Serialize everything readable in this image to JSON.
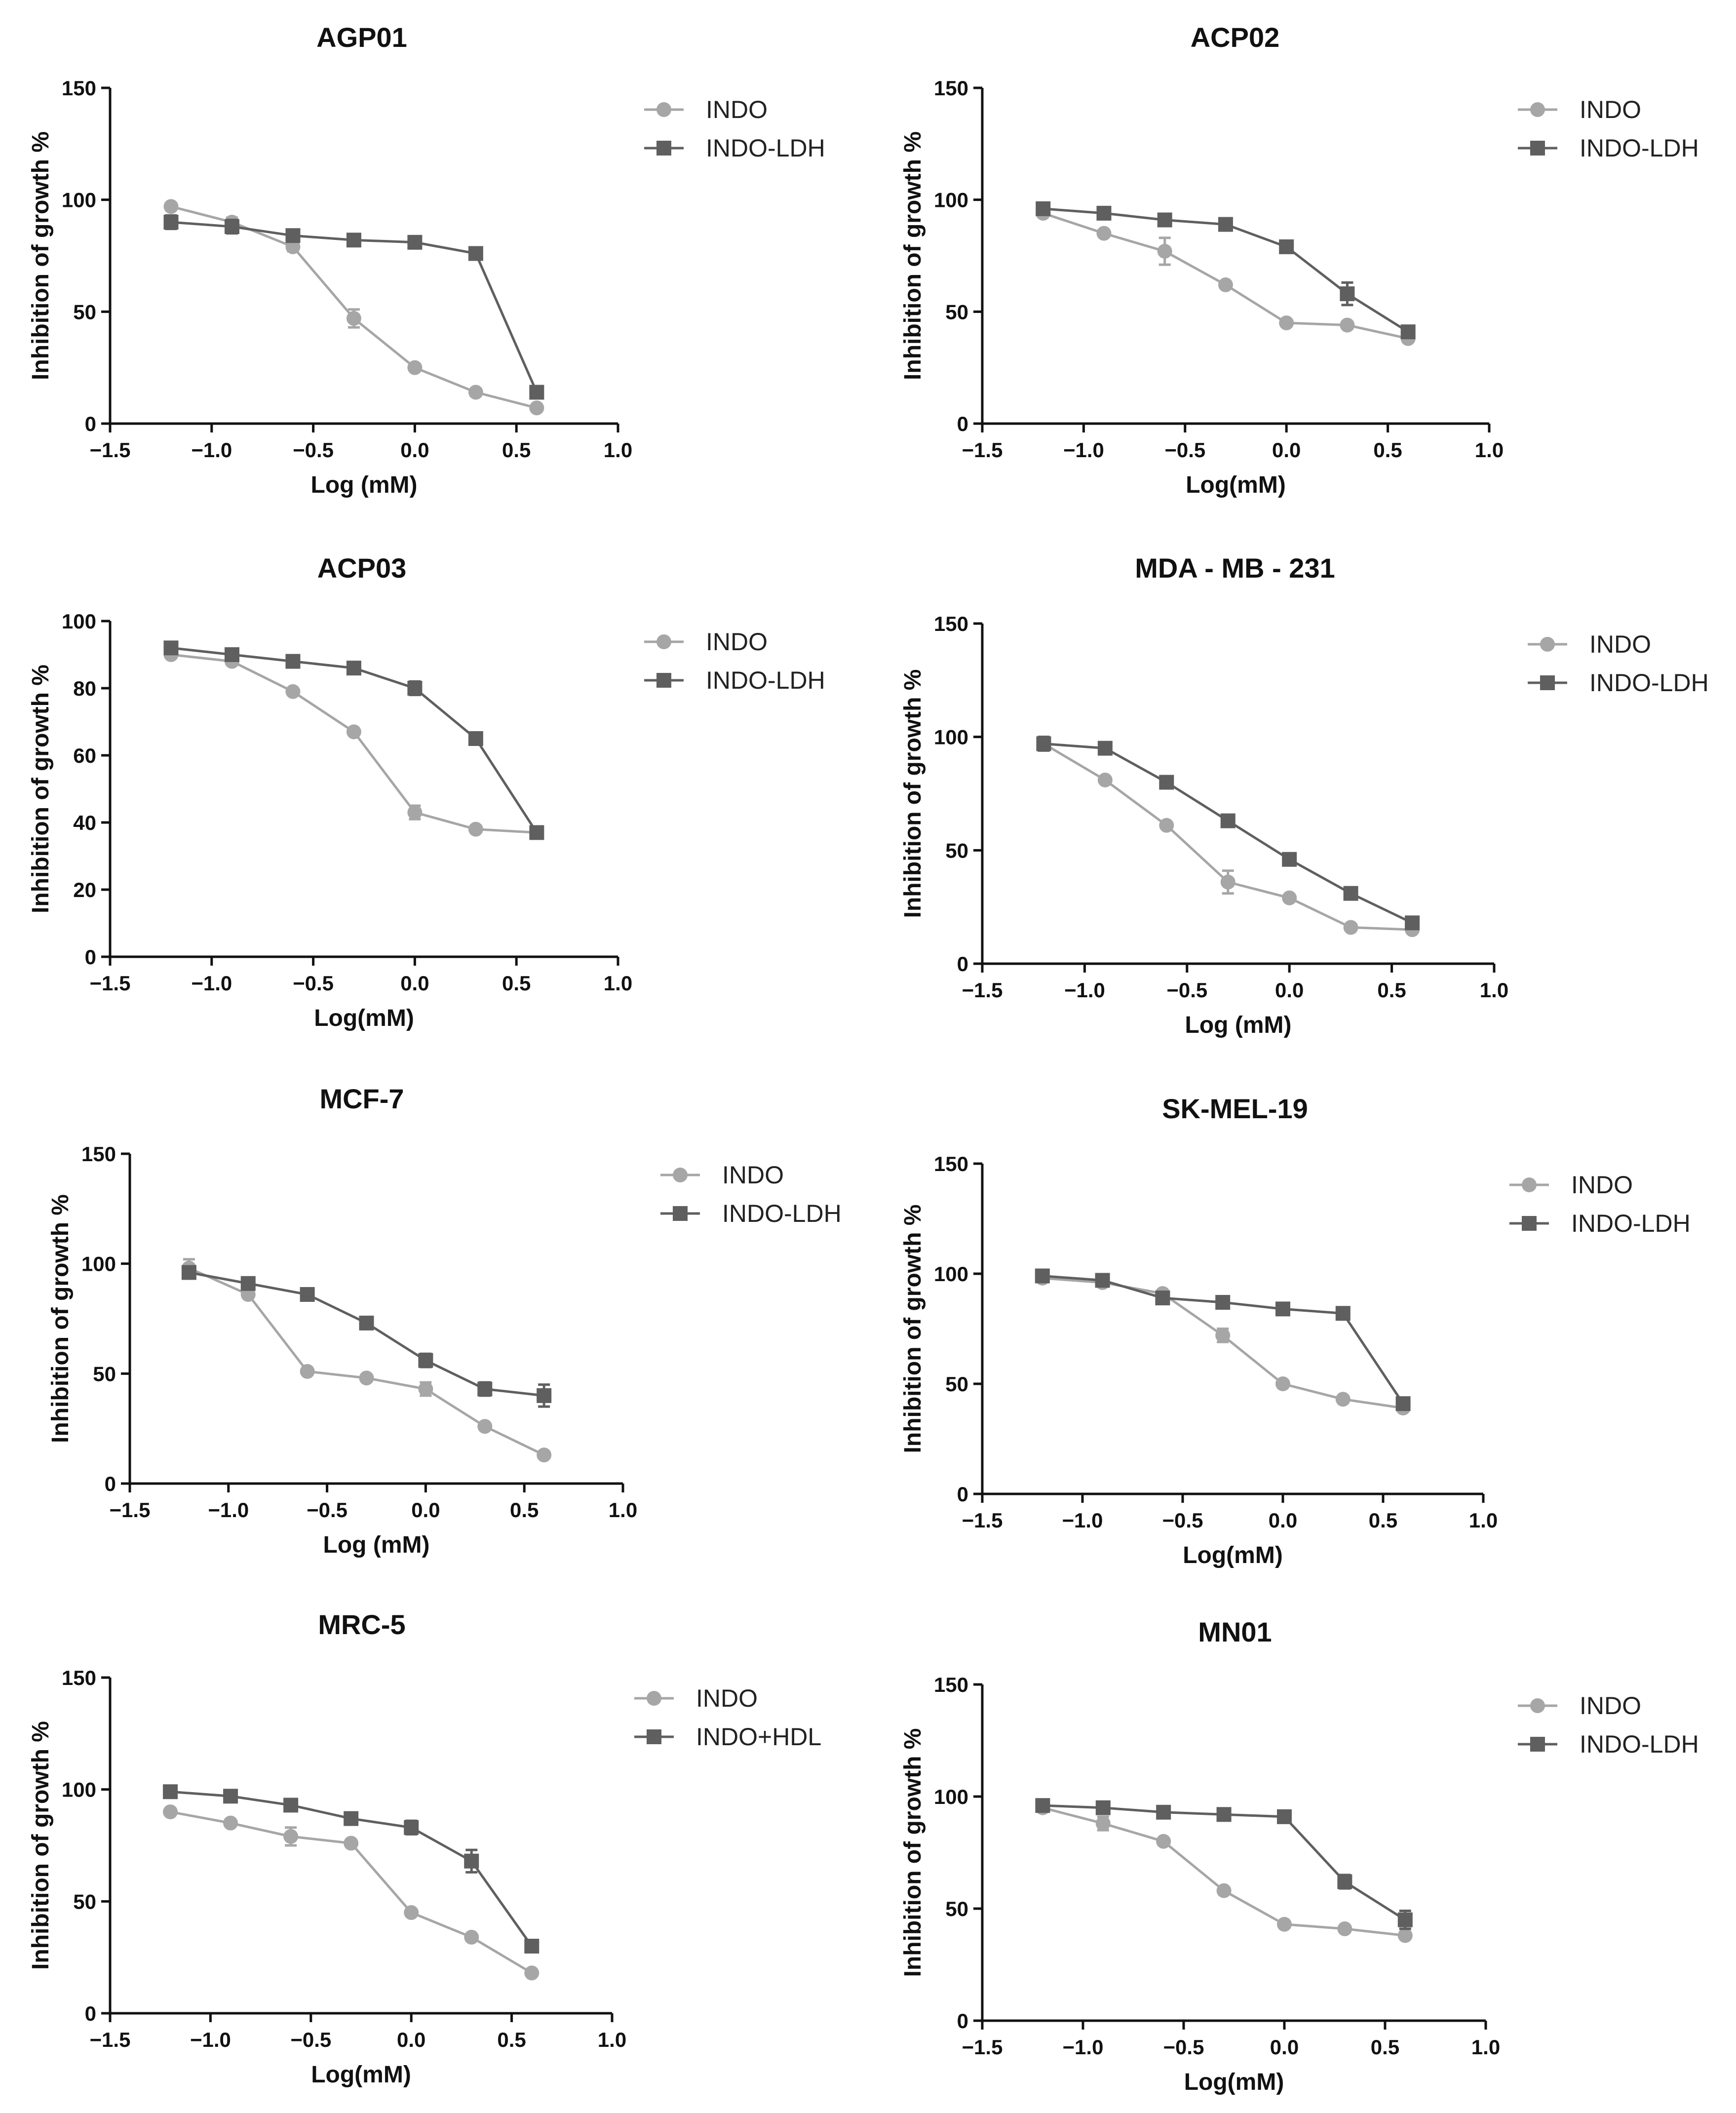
{
  "figure": {
    "background": "#ffffff"
  },
  "colors": {
    "indo": "#a6a6a6",
    "ldh": "#5f5f5f",
    "axis": "#111111"
  },
  "chart_data": [
    {
      "type": "line",
      "title": "AGP01",
      "xlabel": "Log (mM)",
      "ylabel": "Inhibition of growth %",
      "xlim": [
        -1.5,
        1.0
      ],
      "ylim": [
        0,
        150
      ],
      "xticks": [
        -1.5,
        -1.0,
        -0.5,
        0.0,
        0.5,
        1.0
      ],
      "xtick_labels": [
        "−1.5",
        "−1.0",
        "−0.5",
        "0.0",
        "0.5",
        "1.0"
      ],
      "yticks": [
        0,
        50,
        100,
        150
      ],
      "ytick_labels": [
        "0",
        "50",
        "100",
        "150"
      ],
      "legend_position": "right",
      "x": [
        -1.2,
        -0.9,
        -0.6,
        -0.3,
        0.0,
        0.3,
        0.6
      ],
      "series": [
        {
          "name": "INDO",
          "marker": "circle",
          "values": [
            97,
            90,
            79,
            47,
            25,
            14,
            7
          ],
          "errors": [
            1,
            2,
            2,
            4,
            1,
            1,
            1
          ]
        },
        {
          "name": "INDO-LDH",
          "marker": "square",
          "values": [
            90,
            88,
            84,
            82,
            81,
            76,
            14
          ],
          "errors": [
            3,
            3,
            1,
            1,
            1,
            2,
            2
          ]
        }
      ]
    },
    {
      "type": "line",
      "title": "ACP02",
      "xlabel": "Log(mM)",
      "ylabel": "Inhibition of growth %",
      "xlim": [
        -1.5,
        1.0
      ],
      "ylim": [
        0,
        150
      ],
      "xticks": [
        -1.5,
        -1.0,
        -0.5,
        0.0,
        0.5,
        1.0
      ],
      "xtick_labels": [
        "−1.5",
        "−1.0",
        "−0.5",
        "0.0",
        "0.5",
        "1.0"
      ],
      "yticks": [
        0,
        50,
        100,
        150
      ],
      "ytick_labels": [
        "0",
        "50",
        "100",
        "150"
      ],
      "legend_position": "right",
      "x": [
        -1.2,
        -0.9,
        -0.6,
        -0.3,
        0.0,
        0.3,
        0.6
      ],
      "series": [
        {
          "name": "INDO",
          "marker": "circle",
          "values": [
            94,
            85,
            77,
            62,
            45,
            44,
            38
          ],
          "errors": [
            1,
            1,
            6,
            1,
            1,
            1,
            1
          ]
        },
        {
          "name": "INDO-LDH",
          "marker": "square",
          "values": [
            96,
            94,
            91,
            89,
            79,
            58,
            41
          ],
          "errors": [
            1,
            1,
            1,
            1,
            1,
            5,
            1
          ]
        }
      ]
    },
    {
      "type": "line",
      "title": "ACP03",
      "xlabel": "Log(mM)",
      "ylabel": "Inhibition of growth %",
      "xlim": [
        -1.5,
        1.0
      ],
      "ylim": [
        0,
        100
      ],
      "xticks": [
        -1.5,
        -1.0,
        -0.5,
        0.0,
        0.5,
        1.0
      ],
      "xtick_labels": [
        "−1.5",
        "−1.0",
        "−0.5",
        "0.0",
        "0.5",
        "1.0"
      ],
      "yticks": [
        0,
        20,
        40,
        60,
        80,
        100
      ],
      "ytick_labels": [
        "0",
        "20",
        "40",
        "60",
        "80",
        "100"
      ],
      "legend_position": "right",
      "x": [
        -1.2,
        -0.9,
        -0.6,
        -0.3,
        0.0,
        0.3,
        0.6
      ],
      "series": [
        {
          "name": "INDO",
          "marker": "circle",
          "values": [
            90,
            88,
            79,
            67,
            43,
            38,
            37
          ],
          "errors": [
            1,
            1,
            1,
            1,
            2,
            1,
            1
          ]
        },
        {
          "name": "INDO-LDH",
          "marker": "square",
          "values": [
            92,
            90,
            88,
            86,
            80,
            65,
            37
          ],
          "errors": [
            1,
            1,
            1,
            1,
            2,
            1,
            1
          ]
        }
      ]
    },
    {
      "type": "line",
      "title": "MDA - MB - 231",
      "xlabel": "Log (mM)",
      "ylabel": "Inhibition of growth %",
      "xlim": [
        -1.5,
        1.0
      ],
      "ylim": [
        0,
        150
      ],
      "xticks": [
        -1.5,
        -1.0,
        -0.5,
        0.0,
        0.5,
        1.0
      ],
      "xtick_labels": [
        "−1.5",
        "−1.0",
        "−0.5",
        "0.0",
        "0.5",
        "1.0"
      ],
      "yticks": [
        0,
        50,
        100,
        150
      ],
      "ytick_labels": [
        "0",
        "50",
        "100",
        "150"
      ],
      "legend_position": "right",
      "x": [
        -1.2,
        -0.9,
        -0.6,
        -0.3,
        0.0,
        0.3,
        0.6
      ],
      "series": [
        {
          "name": "INDO",
          "marker": "circle",
          "values": [
            97,
            81,
            61,
            36,
            29,
            16,
            15
          ],
          "errors": [
            3,
            1,
            1,
            5,
            1,
            1,
            1
          ]
        },
        {
          "name": "INDO-LDH",
          "marker": "square",
          "values": [
            97,
            95,
            80,
            63,
            46,
            31,
            18
          ],
          "errors": [
            3,
            1,
            1,
            1,
            1,
            1,
            1
          ]
        }
      ]
    },
    {
      "type": "line",
      "title": "MCF-7",
      "xlabel": "Log (mM)",
      "ylabel": "Inhibition of growth %",
      "xlim": [
        -1.5,
        1.0
      ],
      "ylim": [
        0,
        150
      ],
      "xticks": [
        -1.5,
        -1.0,
        -0.5,
        0.0,
        0.5,
        1.0
      ],
      "xtick_labels": [
        "−1.5",
        "−1.0",
        "−0.5",
        "0.0",
        "0.5",
        "1.0"
      ],
      "yticks": [
        0,
        50,
        100,
        150
      ],
      "ytick_labels": [
        "0",
        "50",
        "100",
        "150"
      ],
      "legend_position": "right",
      "x": [
        -1.2,
        -0.9,
        -0.6,
        -0.3,
        0.0,
        0.3,
        0.6
      ],
      "series": [
        {
          "name": "INDO",
          "marker": "circle",
          "values": [
            98,
            86,
            51,
            48,
            43,
            26,
            13
          ],
          "errors": [
            4,
            1,
            1,
            1,
            3,
            1,
            1
          ]
        },
        {
          "name": "INDO-LDH",
          "marker": "square",
          "values": [
            96,
            91,
            86,
            73,
            56,
            43,
            40
          ],
          "errors": [
            2,
            1,
            1,
            1,
            3,
            3,
            5
          ]
        }
      ]
    },
    {
      "type": "line",
      "title": "SK-MEL-19",
      "xlabel": "Log(mM)",
      "ylabel": "Inhibition of growth %",
      "xlim": [
        -1.5,
        1.0
      ],
      "ylim": [
        0,
        150
      ],
      "xticks": [
        -1.5,
        -1.0,
        -0.5,
        0.0,
        0.5,
        1.0
      ],
      "xtick_labels": [
        "−1.5",
        "−1.0",
        "−0.5",
        "0.0",
        "0.5",
        "1.0"
      ],
      "yticks": [
        0,
        50,
        100,
        150
      ],
      "ytick_labels": [
        "0",
        "50",
        "100",
        "150"
      ],
      "legend_position": "right",
      "x": [
        -1.2,
        -0.9,
        -0.6,
        -0.3,
        0.0,
        0.3,
        0.6
      ],
      "series": [
        {
          "name": "INDO",
          "marker": "circle",
          "values": [
            98,
            96,
            91,
            72,
            50,
            43,
            39
          ],
          "errors": [
            1,
            1,
            1,
            3,
            1,
            1,
            1
          ]
        },
        {
          "name": "INDO-LDH",
          "marker": "square",
          "values": [
            99,
            97,
            89,
            87,
            84,
            82,
            41
          ],
          "errors": [
            1,
            1,
            1,
            1,
            1,
            1,
            2
          ]
        }
      ]
    },
    {
      "type": "line",
      "title": "MRC-5",
      "xlabel": "Log(mM)",
      "ylabel": "Inhibition of growth %",
      "xlim": [
        -1.5,
        1.0
      ],
      "ylim": [
        0,
        150
      ],
      "xticks": [
        -1.5,
        -1.0,
        -0.5,
        0.0,
        0.5,
        1.0
      ],
      "xtick_labels": [
        "−1.5",
        "−1.0",
        "−0.5",
        "0.0",
        "0.5",
        "1.0"
      ],
      "yticks": [
        0,
        50,
        100,
        150
      ],
      "ytick_labels": [
        "0",
        "50",
        "100",
        "150"
      ],
      "legend_position": "right",
      "x": [
        -1.2,
        -0.9,
        -0.6,
        -0.3,
        0.0,
        0.3,
        0.6
      ],
      "series": [
        {
          "name": "INDO",
          "marker": "circle",
          "values": [
            90,
            85,
            79,
            76,
            45,
            34,
            18
          ],
          "errors": [
            1,
            1,
            4,
            1,
            1,
            1,
            1
          ]
        },
        {
          "name": "INDO+HDL",
          "marker": "square",
          "values": [
            99,
            97,
            93,
            87,
            83,
            68,
            30
          ],
          "errors": [
            1,
            1,
            1,
            1,
            3,
            5,
            1
          ]
        }
      ]
    },
    {
      "type": "line",
      "title": "MN01",
      "xlabel": "Log(mM)",
      "ylabel": "Inhibition of growth %",
      "xlim": [
        -1.5,
        1.0
      ],
      "ylim": [
        0,
        150
      ],
      "xticks": [
        -1.5,
        -1.0,
        -0.5,
        0.0,
        0.5,
        1.0
      ],
      "xtick_labels": [
        "−1.5",
        "−1.0",
        "−0.5",
        "0.0",
        "0.5",
        "1.0"
      ],
      "yticks": [
        0,
        50,
        100,
        150
      ],
      "ytick_labels": [
        "0",
        "50",
        "100",
        "150"
      ],
      "legend_position": "right",
      "x": [
        -1.2,
        -0.9,
        -0.6,
        -0.3,
        0.0,
        0.3,
        0.6
      ],
      "series": [
        {
          "name": "INDO",
          "marker": "circle",
          "values": [
            95,
            88,
            80,
            58,
            43,
            41,
            38
          ],
          "errors": [
            1,
            3,
            1,
            1,
            1,
            1,
            1
          ]
        },
        {
          "name": "INDO-LDH",
          "marker": "square",
          "values": [
            96,
            95,
            93,
            92,
            91,
            62,
            45
          ],
          "errors": [
            1,
            1,
            1,
            1,
            1,
            3,
            4
          ]
        }
      ]
    }
  ]
}
